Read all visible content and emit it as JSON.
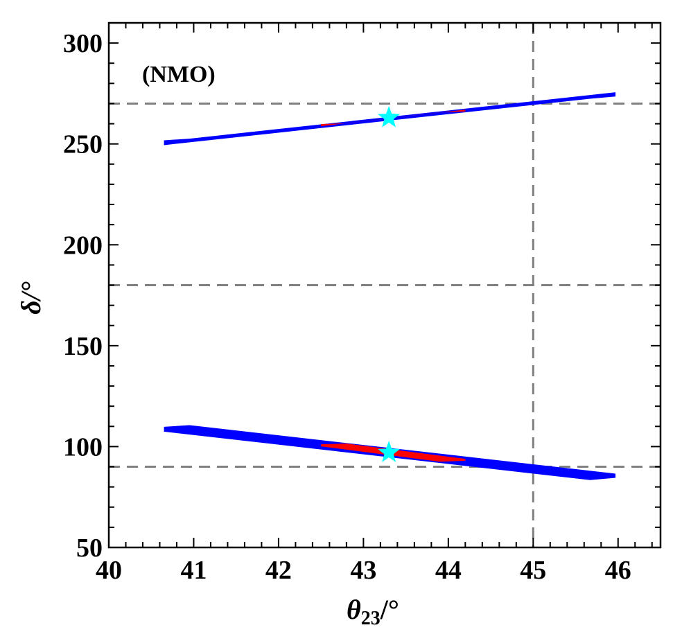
{
  "chart_data": {
    "type": "scatter",
    "title": "",
    "annotation": "(NMO)",
    "xlabel": "θ",
    "xlabel_sub": "23",
    "xlabel_unit": "/°",
    "ylabel": "δ/°",
    "xlim": [
      40,
      46.5
    ],
    "ylim": [
      50,
      310
    ],
    "x_ticks": [
      "40",
      "41",
      "42",
      "43",
      "44",
      "45",
      "46"
    ],
    "y_ticks": [
      "50",
      "100",
      "150",
      "200",
      "250",
      "300"
    ],
    "reference_lines": {
      "vertical": [
        45
      ],
      "horizontal": [
        90,
        180,
        270
      ]
    },
    "regions": [
      {
        "color": "#0000ff",
        "from": [
          40.65,
          251
        ],
        "to": [
          45.97,
          274
        ],
        "width": 3.2
      },
      {
        "color": "#0000ff",
        "from": [
          40.65,
          109
        ],
        "to": [
          45.97,
          85
        ],
        "width": 3.2
      },
      {
        "color": "#ff0000",
        "from": [
          42.5,
          259.5
        ],
        "to": [
          44.2,
          266.3
        ],
        "width": 1.4
      },
      {
        "color": "#ff0000",
        "from": [
          42.5,
          100.8
        ],
        "to": [
          44.2,
          93.2
        ],
        "width": 1.4
      }
    ],
    "best_fit_points": [
      {
        "x": 43.3,
        "y": 263,
        "color": "#00ffff"
      },
      {
        "x": 43.3,
        "y": 97,
        "color": "#00ffff"
      }
    ],
    "grid": false,
    "reference_line_color": "#808080"
  }
}
